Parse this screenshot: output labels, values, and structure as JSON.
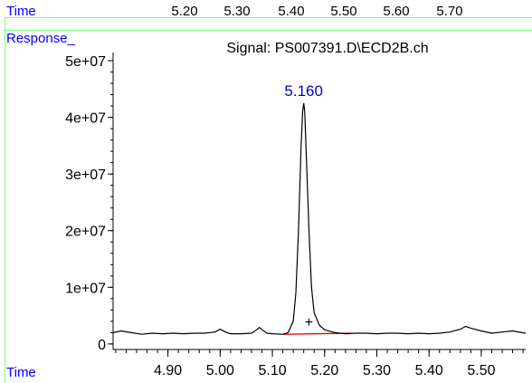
{
  "colors": {
    "frame_line": "#7CFC7C",
    "axis_label": "#0000FF",
    "trace": "#000000",
    "peak_label": "#0000CC",
    "baseline": "#E00000"
  },
  "top_axis": {
    "label": "Time",
    "ticks": [
      "5.20",
      "5.30",
      "5.40",
      "5.50",
      "5.60",
      "5.70"
    ]
  },
  "chart_data": {
    "type": "line",
    "title": "Signal: PS007391.D\\ECD2B.ch",
    "ylabel": "Response_",
    "xlabel": "Time",
    "xlim": [
      4.795,
      5.585
    ],
    "ylim": [
      -500000,
      50800000
    ],
    "xticks": [
      4.9,
      5.0,
      5.1,
      5.2,
      5.3,
      5.4,
      5.5
    ],
    "xtick_labels": [
      "4.90",
      "5.00",
      "5.10",
      "5.20",
      "5.30",
      "5.40",
      "5.50"
    ],
    "yticks": [
      0,
      10000000,
      20000000,
      30000000,
      40000000,
      50000000
    ],
    "ytick_labels": [
      "0",
      "1e+07",
      "2e+07",
      "3e+07",
      "4e+07",
      "5e+07"
    ],
    "series": [
      {
        "x": [
          4.795,
          4.81,
          4.83,
          4.85,
          4.87,
          4.89,
          4.91,
          4.93,
          4.95,
          4.97,
          4.99,
          5.0,
          5.01,
          5.02,
          5.04,
          5.06,
          5.07,
          5.075,
          5.08,
          5.09,
          5.1,
          5.12,
          5.13,
          5.14,
          5.145,
          5.15,
          5.155,
          5.158,
          5.16,
          5.162,
          5.165,
          5.17,
          5.175,
          5.18,
          5.19,
          5.2,
          5.22,
          5.24,
          5.26,
          5.28,
          5.3,
          5.32,
          5.34,
          5.36,
          5.38,
          5.4,
          5.42,
          5.44,
          5.46,
          5.47,
          5.48,
          5.5,
          5.52,
          5.54,
          5.56,
          5.585
        ],
        "y": [
          2000000,
          2300000,
          2000000,
          1700000,
          1900000,
          1800000,
          1900000,
          1800000,
          1900000,
          1900000,
          2100000,
          2600000,
          2100000,
          1800000,
          1800000,
          1900000,
          2500000,
          2900000,
          2500000,
          1900000,
          1800000,
          1700000,
          2000000,
          4000000,
          9000000,
          20000000,
          35000000,
          41000000,
          42500000,
          41000000,
          33000000,
          20000000,
          10000000,
          5500000,
          3300000,
          2500000,
          2000000,
          1800000,
          1900000,
          1900000,
          1800000,
          1900000,
          1900000,
          1800000,
          1900000,
          1800000,
          1900000,
          2100000,
          2600000,
          3100000,
          2800000,
          2300000,
          1900000,
          2100000,
          2300000,
          1900000
        ]
      }
    ],
    "peak_label": "5.160",
    "peak": {
      "x": 5.16,
      "y": 42500000
    },
    "marker": {
      "symbol": "+",
      "x": 5.17,
      "y": 4000000
    },
    "baseline_segment": {
      "x1": 5.12,
      "y1": 1700000,
      "x2": 5.25,
      "y2": 1900000
    }
  }
}
